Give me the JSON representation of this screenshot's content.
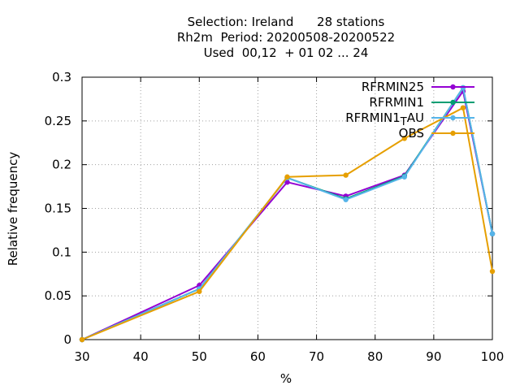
{
  "chart_data": {
    "type": "line",
    "title_lines": [
      "Selection: Ireland      28 stations",
      "Rh2m  Period: 20200508-20200522",
      "Used  00,12  + 01 02 ... 24"
    ],
    "xlabel": "%",
    "ylabel": "Relative frequency",
    "xlim": [
      30,
      100
    ],
    "ylim": [
      0,
      0.3
    ],
    "xticks": [
      "30",
      "40",
      "50",
      "60",
      "70",
      "80",
      "90",
      "100"
    ],
    "yticks": [
      "0",
      "0.05",
      "0.1",
      "0.15",
      "0.2",
      "0.25",
      "0.3"
    ],
    "grid": true,
    "legend_position": "top-right",
    "x": [
      30,
      50,
      65,
      75,
      85,
      95,
      100
    ],
    "series": [
      {
        "name": "RFRMIN25",
        "color": "#9400d3",
        "values": [
          0.0,
          0.062,
          0.18,
          0.164,
          0.188,
          0.284,
          0.121
        ]
      },
      {
        "name": "RFRMIN1",
        "color": "#009e73",
        "values": [
          0.0,
          0.058,
          0.185,
          0.161,
          0.187,
          0.288,
          0.121
        ]
      },
      {
        "name": "RFRMIN1_T_AU",
        "color": "#56b4e9",
        "values": [
          0.0,
          0.058,
          0.185,
          0.16,
          0.186,
          0.288,
          0.121
        ]
      },
      {
        "name": "OBS",
        "color": "#e69f00",
        "values": [
          0.0,
          0.055,
          0.186,
          0.188,
          0.23,
          0.265,
          0.078
        ]
      }
    ]
  }
}
